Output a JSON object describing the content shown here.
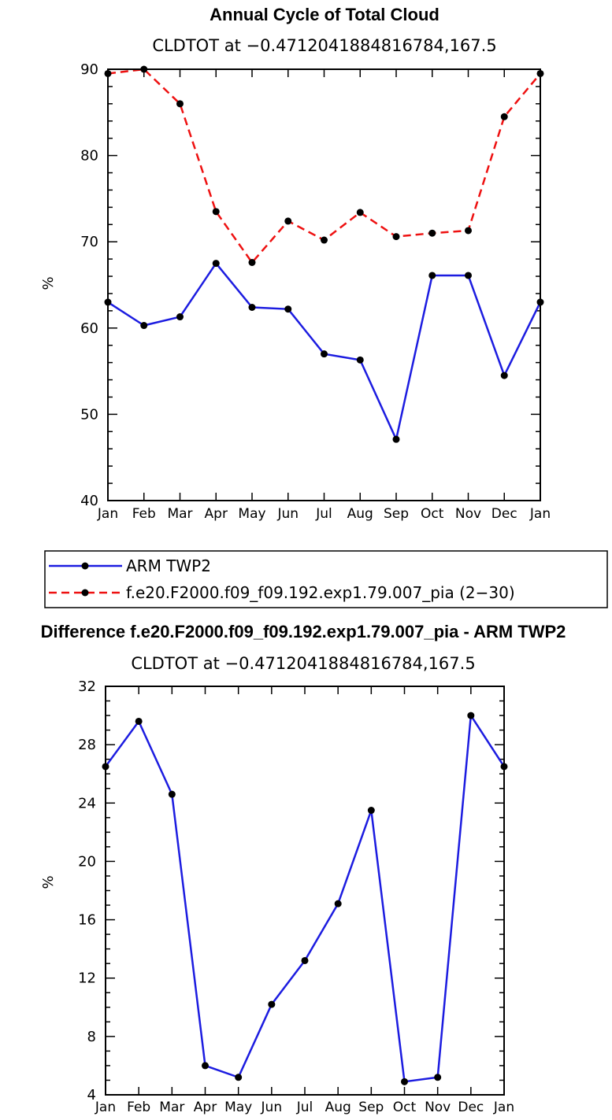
{
  "chart_data": [
    {
      "type": "line",
      "title": "Annual Cycle of Total Cloud",
      "subtitle": "CLDTOT at −0.4712041884816784,167.5",
      "xlabel": "",
      "ylabel": "%",
      "categories": [
        "Jan",
        "Feb",
        "Mar",
        "Apr",
        "May",
        "Jun",
        "Jul",
        "Aug",
        "Sep",
        "Oct",
        "Nov",
        "Dec",
        "Jan"
      ],
      "ylim": [
        40,
        90
      ],
      "yticks": [
        40,
        50,
        60,
        70,
        80,
        90
      ],
      "yminor_step": 2,
      "grid": false,
      "legend_position": "below",
      "series": [
        {
          "name": "ARM TWP2",
          "color": "#1c1ce0",
          "dash": "solid",
          "values": [
            63.0,
            60.3,
            61.3,
            67.5,
            62.4,
            62.2,
            57.0,
            56.3,
            47.1,
            66.1,
            66.1,
            54.5,
            63.0
          ]
        },
        {
          "name": "f.e20.F2000.f09_f09.192.exp1.79.007_pia (2−30)",
          "color": "#ee1111",
          "dash": "dashed",
          "values": [
            89.5,
            90.0,
            86.0,
            73.5,
            67.6,
            72.4,
            70.2,
            73.4,
            70.6,
            71.0,
            71.3,
            84.5,
            89.5
          ]
        }
      ]
    },
    {
      "type": "line",
      "title": "Difference f.e20.F2000.f09_f09.192.exp1.79.007_pia - ARM TWP2",
      "subtitle": "CLDTOT at −0.4712041884816784,167.5",
      "xlabel": "",
      "ylabel": "%",
      "categories": [
        "Jan",
        "Feb",
        "Mar",
        "Apr",
        "May",
        "Jun",
        "Jul",
        "Aug",
        "Sep",
        "Oct",
        "Nov",
        "Dec",
        "Jan"
      ],
      "ylim": [
        4,
        32
      ],
      "yticks": [
        4,
        8,
        12,
        16,
        20,
        24,
        28,
        32
      ],
      "yminor_step": 1,
      "grid": false,
      "series": [
        {
          "name": "Difference",
          "color": "#1c1ce0",
          "dash": "solid",
          "values": [
            26.5,
            29.6,
            24.6,
            6.0,
            5.2,
            10.2,
            13.2,
            17.1,
            23.5,
            4.9,
            5.2,
            30.0,
            26.5
          ]
        }
      ]
    }
  ]
}
